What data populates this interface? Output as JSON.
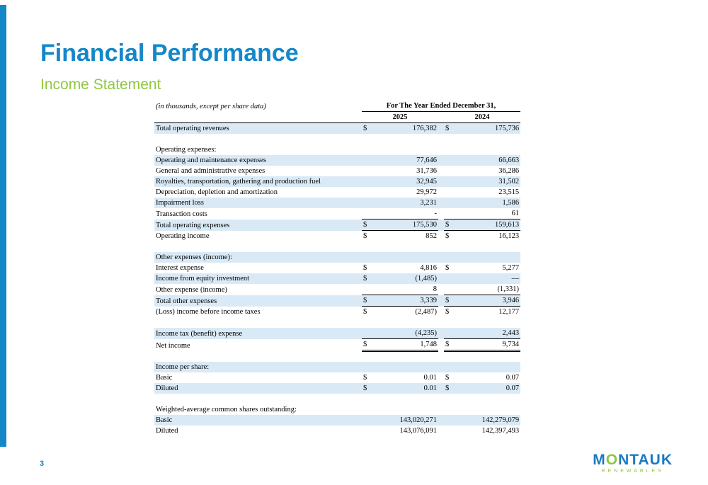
{
  "slide": {
    "title": "Financial Performance",
    "subtitle": "Income Statement",
    "page_number": "3"
  },
  "logo": {
    "part_m": "M",
    "part_o": "O",
    "part_rest": "NTAUK",
    "subtext": "RENEWABLES"
  },
  "colors": {
    "accent_blue": "#1487c9",
    "accent_green": "#8fc73e",
    "row_shade": "#d9eaf6",
    "logo_blue": "#1b7ac2"
  },
  "table": {
    "caption": "(in thousands, except per share data)",
    "period_header": "For The Year Ended December 31,",
    "years": [
      "2025",
      "2024"
    ],
    "rows": [
      {
        "label": "Total operating revenues",
        "indent": 0,
        "d1": "$",
        "v1": "176,382",
        "d2": "$",
        "v2": "175,736",
        "shaded": true,
        "rule": "none"
      },
      {
        "spacer": true
      },
      {
        "label": "Operating expenses:",
        "indent": 0,
        "d1": "",
        "v1": "",
        "d2": "",
        "v2": "",
        "shaded": false,
        "rule": "none"
      },
      {
        "label": "Operating and maintenance expenses",
        "indent": 1,
        "d1": "",
        "v1": "77,646",
        "d2": "",
        "v2": "66,663",
        "shaded": true,
        "rule": "none"
      },
      {
        "label": "General and administrative expenses",
        "indent": 1,
        "d1": "",
        "v1": "31,736",
        "d2": "",
        "v2": "36,286",
        "shaded": false,
        "rule": "none"
      },
      {
        "label": "Royalties, transportation, gathering and production fuel",
        "indent": 1,
        "d1": "",
        "v1": "32,945",
        "d2": "",
        "v2": "31,502",
        "shaded": true,
        "rule": "none"
      },
      {
        "label": "Depreciation, depletion and amortization",
        "indent": 1,
        "d1": "",
        "v1": "29,972",
        "d2": "",
        "v2": "23,515",
        "shaded": false,
        "rule": "none"
      },
      {
        "label": "Impairment loss",
        "indent": 1,
        "d1": "",
        "v1": "3,231",
        "d2": "",
        "v2": "1,586",
        "shaded": true,
        "rule": "none"
      },
      {
        "label": "Transaction costs",
        "indent": 1,
        "d1": "",
        "v1": "-",
        "d2": "",
        "v2": "61",
        "shaded": false,
        "rule": "single"
      },
      {
        "label": "Total operating expenses",
        "indent": 2,
        "d1": "$",
        "v1": "175,530",
        "d2": "$",
        "v2": "159,613",
        "shaded": true,
        "rule": "single"
      },
      {
        "label": "Operating income",
        "indent": 2,
        "d1": "$",
        "v1": "852",
        "d2": "$",
        "v2": "16,123",
        "shaded": false,
        "rule": "none"
      },
      {
        "spacer": true
      },
      {
        "label": "Other expenses (income):",
        "indent": 0,
        "d1": "",
        "v1": "",
        "d2": "",
        "v2": "",
        "shaded": true,
        "rule": "none"
      },
      {
        "label": "Interest expense",
        "indent": 1,
        "d1": "$",
        "v1": "4,816",
        "d2": "$",
        "v2": "5,277",
        "shaded": false,
        "rule": "none"
      },
      {
        "label": "Income from equity investment",
        "indent": 1,
        "d1": "$",
        "v1": "(1,485)",
        "d2": "",
        "v2": "—",
        "shaded": true,
        "rule": "none"
      },
      {
        "label": "Other expense (income)",
        "indent": 1,
        "d1": "",
        "v1": "8",
        "d2": "",
        "v2": "(1,331)",
        "shaded": false,
        "rule": "single"
      },
      {
        "label": "Total other expenses",
        "indent": 2,
        "d1": "$",
        "v1": "3,339",
        "d2": "$",
        "v2": "3,946",
        "shaded": true,
        "rule": "single"
      },
      {
        "label": "(Loss) income before income taxes",
        "indent": 0,
        "d1": "$",
        "v1": "(2,487)",
        "d2": "$",
        "v2": "12,177",
        "shaded": false,
        "rule": "none"
      },
      {
        "spacer": true
      },
      {
        "label": "Income tax (benefit) expense",
        "indent": 0,
        "d1": "",
        "v1": "(4,235)",
        "d2": "",
        "v2": "2,443",
        "shaded": true,
        "rule": "single"
      },
      {
        "label": "Net income",
        "indent": 2,
        "d1": "$",
        "v1": "1,748",
        "d2": "$",
        "v2": "9,734",
        "shaded": false,
        "rule": "double"
      },
      {
        "spacer": true
      },
      {
        "label": "Income per share:",
        "indent": 0,
        "d1": "",
        "v1": "",
        "d2": "",
        "v2": "",
        "shaded": true,
        "rule": "none"
      },
      {
        "label": "Basic",
        "indent": 1,
        "d1": "$",
        "v1": "0.01",
        "d2": "$",
        "v2": "0.07",
        "shaded": false,
        "rule": "none"
      },
      {
        "label": "Diluted",
        "indent": 1,
        "d1": "$",
        "v1": "0.01",
        "d2": "$",
        "v2": "0.07",
        "shaded": true,
        "rule": "none"
      },
      {
        "spacer": true
      },
      {
        "label": "Weighted-average common shares outstanding:",
        "indent": 0,
        "d1": "",
        "v1": "",
        "d2": "",
        "v2": "",
        "shaded": false,
        "rule": "none"
      },
      {
        "label": "Basic",
        "indent": 1,
        "d1": "",
        "v1": "143,020,271",
        "d2": "",
        "v2": "142,279,079",
        "shaded": true,
        "rule": "none"
      },
      {
        "label": "Diluted",
        "indent": 1,
        "d1": "",
        "v1": "143,076,091",
        "d2": "",
        "v2": "142,397,493",
        "shaded": false,
        "rule": "none"
      }
    ]
  }
}
